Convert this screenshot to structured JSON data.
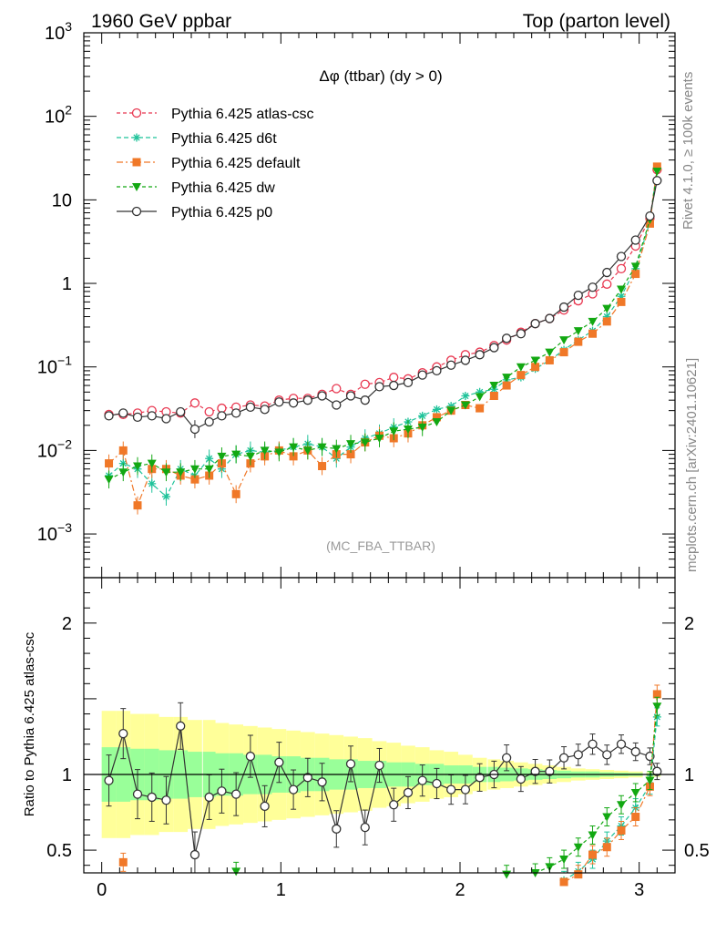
{
  "header": {
    "left": "1960 GeV ppbar",
    "right": "Top (parton level)"
  },
  "side": {
    "rivet": "Rivet 4.1.0, ≥ 100k events",
    "mcplots": "mcplots.cern.ch [arXiv:2401.10621]"
  },
  "colors": {
    "atlas": "#e8364f",
    "d6t": "#1fc39a",
    "default": "#f07828",
    "dw": "#12a812",
    "p0": "#333333",
    "band_yellow": "#ffff99",
    "band_green": "#99ff99"
  },
  "chart_data": {
    "type": "line",
    "title": "Δφ (ttbar) (dy > 0)",
    "analysis_tag": "(MC_FBA_TTBAR)",
    "xlabel": "",
    "ylabel_main": "",
    "ylabel_ratio": "Ratio to Pythia 6.425 atlas-csc",
    "xlim": [
      -0.1,
      3.2
    ],
    "ylim_main": [
      0.0003,
      1000
    ],
    "yscale_main": "log",
    "ylim_ratio": [
      0.35,
      2.3
    ],
    "x_ticks": [
      "0",
      "1",
      "2",
      "3"
    ],
    "y_ticks_main": [
      {
        "base": "10",
        "exp": "−3"
      },
      {
        "base": "10",
        "exp": "−2"
      },
      {
        "base": "10",
        "exp": "−1"
      },
      {
        "base": "1",
        "exp": ""
      },
      {
        "base": "10",
        "exp": ""
      },
      {
        "base": "10",
        "exp": "2"
      },
      {
        "base": "10",
        "exp": "3"
      }
    ],
    "y_ticks_ratio": [
      "0.5",
      "1",
      "2"
    ],
    "legend_position": "top-left",
    "x": [
      0.04,
      0.12,
      0.2,
      0.28,
      0.36,
      0.44,
      0.52,
      0.6,
      0.67,
      0.75,
      0.83,
      0.91,
      0.99,
      1.07,
      1.15,
      1.23,
      1.31,
      1.39,
      1.47,
      1.55,
      1.63,
      1.71,
      1.79,
      1.87,
      1.95,
      2.03,
      2.11,
      2.19,
      2.26,
      2.34,
      2.42,
      2.5,
      2.58,
      2.66,
      2.74,
      2.82,
      2.9,
      2.98,
      3.06,
      3.1
    ],
    "series": [
      {
        "name": "Pythia 6.425 atlas-csc",
        "key": "atlas",
        "marker": "circle-open",
        "dash": "4,3",
        "values": [
          0.027,
          0.027,
          0.028,
          0.03,
          0.029,
          0.028,
          0.037,
          0.029,
          0.032,
          0.033,
          0.035,
          0.034,
          0.04,
          0.042,
          0.042,
          0.047,
          0.055,
          0.047,
          0.062,
          0.065,
          0.075,
          0.072,
          0.085,
          0.1,
          0.12,
          0.14,
          0.15,
          0.18,
          0.21,
          0.26,
          0.33,
          0.38,
          0.48,
          0.62,
          0.75,
          0.98,
          1.5,
          2.8,
          6.0,
          23.0
        ]
      },
      {
        "name": "Pythia 6.425 d6t",
        "key": "d6t",
        "marker": "star",
        "dash": "5,3",
        "values": [
          0.005,
          0.007,
          0.006,
          0.004,
          0.0028,
          0.006,
          0.005,
          0.008,
          0.006,
          0.009,
          0.01,
          0.0095,
          0.01,
          0.011,
          0.012,
          0.011,
          0.008,
          0.011,
          0.014,
          0.016,
          0.019,
          0.022,
          0.026,
          0.031,
          0.034,
          0.045,
          0.05,
          0.054,
          0.07,
          0.075,
          0.095,
          0.12,
          0.16,
          0.21,
          0.27,
          0.4,
          0.7,
          1.5,
          5.5,
          24.0
        ]
      },
      {
        "name": "Pythia 6.425 default",
        "key": "default",
        "marker": "square",
        "dash": "7,3,2,3",
        "values": [
          0.007,
          0.01,
          0.0022,
          0.006,
          0.006,
          0.005,
          0.0045,
          0.005,
          0.007,
          0.003,
          0.007,
          0.0085,
          0.01,
          0.0085,
          0.01,
          0.0065,
          0.009,
          0.009,
          0.0125,
          0.015,
          0.014,
          0.016,
          0.02,
          0.025,
          0.03,
          0.035,
          0.032,
          0.045,
          0.06,
          0.08,
          0.1,
          0.12,
          0.15,
          0.2,
          0.25,
          0.35,
          0.6,
          1.3,
          5.2,
          25.0
        ]
      },
      {
        "name": "Pythia 6.425 dw",
        "key": "dw",
        "marker": "triangle-down",
        "dash": "4,3",
        "values": [
          0.0045,
          0.0055,
          0.0065,
          0.007,
          0.0055,
          0.0055,
          0.006,
          0.006,
          0.0085,
          0.009,
          0.0085,
          0.01,
          0.0095,
          0.011,
          0.01,
          0.011,
          0.0105,
          0.012,
          0.0125,
          0.014,
          0.017,
          0.018,
          0.019,
          0.022,
          0.03,
          0.035,
          0.044,
          0.06,
          0.075,
          0.1,
          0.12,
          0.15,
          0.21,
          0.27,
          0.35,
          0.5,
          0.85,
          1.6,
          5.8,
          22.0
        ]
      },
      {
        "name": "Pythia 6.425 p0",
        "key": "p0",
        "marker": "circle-open",
        "dash": "",
        "values": [
          0.026,
          0.028,
          0.025,
          0.026,
          0.024,
          0.029,
          0.018,
          0.022,
          0.026,
          0.028,
          0.033,
          0.031,
          0.038,
          0.037,
          0.04,
          0.045,
          0.035,
          0.045,
          0.04,
          0.058,
          0.06,
          0.065,
          0.08,
          0.09,
          0.105,
          0.12,
          0.14,
          0.17,
          0.22,
          0.25,
          0.33,
          0.38,
          0.52,
          0.72,
          0.9,
          1.35,
          2.1,
          3.3,
          6.4,
          17.0
        ]
      }
    ],
    "ratio": {
      "reference": "Pythia 6.425 atlas-csc",
      "series": [
        {
          "key": "p0",
          "values": [
            0.96,
            1.27,
            0.87,
            0.85,
            0.83,
            1.32,
            0.47,
            0.85,
            0.89,
            0.87,
            1.12,
            0.79,
            1.08,
            0.9,
            0.98,
            0.95,
            0.64,
            1.07,
            0.65,
            1.06,
            0.8,
            0.88,
            0.96,
            0.94,
            0.9,
            0.9,
            0.98,
            1.0,
            1.11,
            0.97,
            1.02,
            1.02,
            1.11,
            1.13,
            1.2,
            1.13,
            1.2,
            1.15,
            1.12,
            1.02
          ]
        },
        {
          "key": "atlas",
          "values": [
            1,
            1,
            1,
            1,
            1,
            1,
            1,
            1,
            1,
            1,
            1,
            1,
            1,
            1,
            1,
            1,
            1,
            1,
            1,
            1,
            1,
            1,
            1,
            1,
            1,
            1,
            1,
            1,
            1,
            1,
            1,
            1,
            1,
            1,
            1,
            1,
            1,
            1,
            1,
            1
          ]
        },
        {
          "key": "d6t",
          "values": [
            null,
            null,
            null,
            null,
            null,
            null,
            null,
            null,
            null,
            null,
            null,
            null,
            null,
            null,
            null,
            null,
            null,
            null,
            null,
            null,
            null,
            null,
            null,
            null,
            null,
            null,
            null,
            null,
            null,
            null,
            null,
            null,
            0.3,
            0.36,
            0.44,
            0.56,
            0.66,
            0.78,
            0.93,
            1.38
          ]
        },
        {
          "key": "default",
          "values": [
            null,
            0.42,
            null,
            null,
            null,
            null,
            null,
            null,
            null,
            null,
            null,
            null,
            null,
            null,
            null,
            null,
            null,
            null,
            null,
            null,
            null,
            null,
            null,
            null,
            null,
            null,
            null,
            null,
            null,
            null,
            null,
            null,
            0.29,
            0.34,
            0.47,
            0.52,
            0.63,
            0.72,
            0.92,
            1.53
          ]
        },
        {
          "key": "dw",
          "values": [
            null,
            null,
            null,
            null,
            null,
            null,
            null,
            null,
            null,
            0.36,
            null,
            null,
            null,
            null,
            null,
            null,
            null,
            null,
            null,
            null,
            null,
            null,
            null,
            null,
            null,
            null,
            null,
            null,
            0.34,
            null,
            0.35,
            0.39,
            0.44,
            0.52,
            0.6,
            0.72,
            0.8,
            0.88,
            0.96,
            1.45
          ]
        }
      ],
      "band_green": [
        0.18,
        0.18,
        0.17,
        0.17,
        0.16,
        0.16,
        0.15,
        0.15,
        0.14,
        0.14,
        0.13,
        0.13,
        0.12,
        0.12,
        0.11,
        0.11,
        0.1,
        0.1,
        0.09,
        0.09,
        0.08,
        0.08,
        0.07,
        0.07,
        0.06,
        0.06,
        0.05,
        0.05,
        0.045,
        0.04,
        0.035,
        0.03,
        0.025,
        0.02,
        0.02,
        0.015,
        0.012,
        0.01,
        0.008,
        0.008
      ],
      "band_yellow": [
        0.42,
        0.42,
        0.4,
        0.4,
        0.38,
        0.38,
        0.36,
        0.36,
        0.34,
        0.33,
        0.32,
        0.31,
        0.3,
        0.29,
        0.28,
        0.27,
        0.26,
        0.25,
        0.24,
        0.22,
        0.21,
        0.19,
        0.18,
        0.16,
        0.15,
        0.13,
        0.11,
        0.1,
        0.09,
        0.08,
        0.07,
        0.06,
        0.05,
        0.04,
        0.035,
        0.03,
        0.025,
        0.02,
        0.015,
        0.015
      ]
    }
  }
}
